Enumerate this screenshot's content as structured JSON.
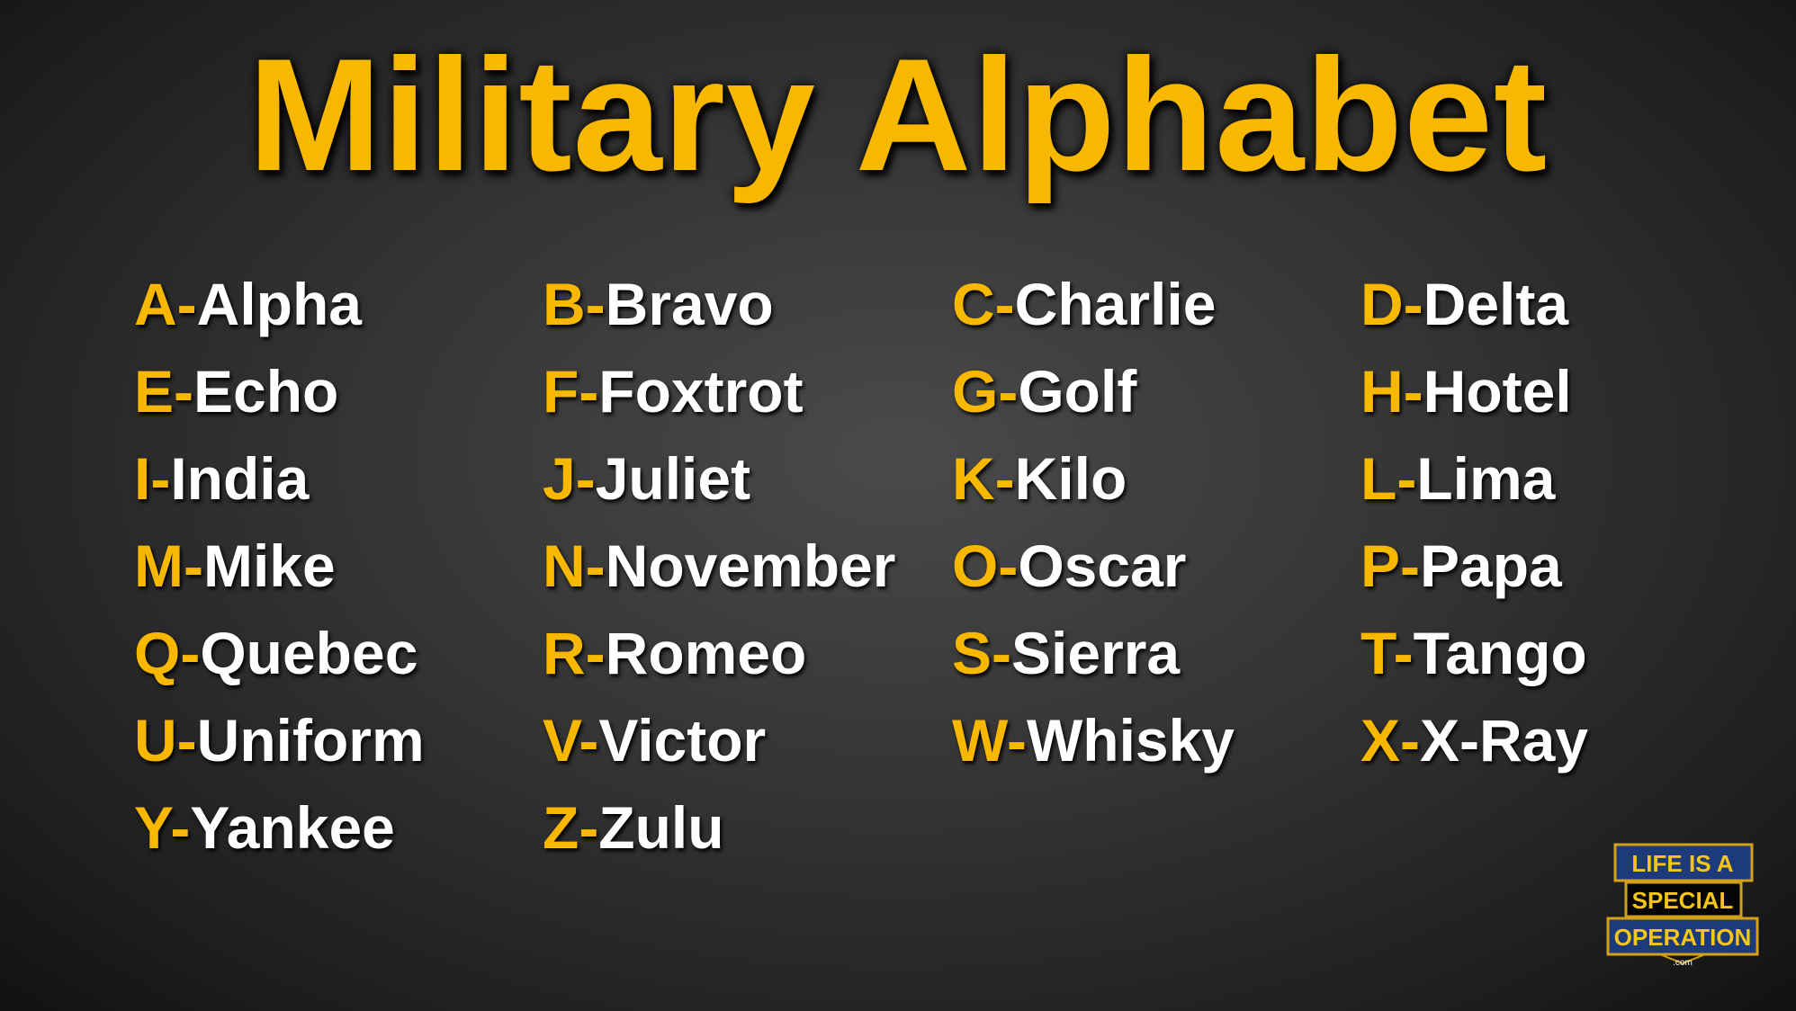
{
  "title": "Military Alphabet",
  "accent_color": "#f9b800",
  "entries": [
    {
      "letter": "A-",
      "word": "Alpha"
    },
    {
      "letter": "B-",
      "word": "Bravo"
    },
    {
      "letter": "C-",
      "word": "Charlie"
    },
    {
      "letter": "D-",
      "word": "Delta"
    },
    {
      "letter": "E-",
      "word": "Echo"
    },
    {
      "letter": "F-",
      "word": "Foxtrot"
    },
    {
      "letter": "G-",
      "word": "Golf"
    },
    {
      "letter": "H-",
      "word": "Hotel"
    },
    {
      "letter": "I-",
      "word": "India"
    },
    {
      "letter": "J-",
      "word": "Juliet"
    },
    {
      "letter": "K-",
      "word": "Kilo"
    },
    {
      "letter": "L-",
      "word": "Lima"
    },
    {
      "letter": "M-",
      "word": "Mike"
    },
    {
      "letter": "N-",
      "word": "November"
    },
    {
      "letter": "O-",
      "word": "Oscar"
    },
    {
      "letter": "P-",
      "word": "Papa"
    },
    {
      "letter": "Q-",
      "word": "Quebec"
    },
    {
      "letter": "R-",
      "word": "Romeo"
    },
    {
      "letter": "S-",
      "word": "Sierra"
    },
    {
      "letter": "T-",
      "word": "Tango"
    },
    {
      "letter": "U-",
      "word": "Uniform"
    },
    {
      "letter": "V-",
      "word": "Victor"
    },
    {
      "letter": "W-",
      "word": "Whisky"
    },
    {
      "letter": "X-",
      "word": "X-Ray"
    },
    {
      "letter": "Y-",
      "word": "Yankee"
    },
    {
      "letter": "Z-",
      "word": "Zulu"
    }
  ],
  "logo": {
    "line1": "LIFE IS A",
    "line2": "SPECIAL",
    "line3": "OPERATION",
    "line4": ".com"
  }
}
